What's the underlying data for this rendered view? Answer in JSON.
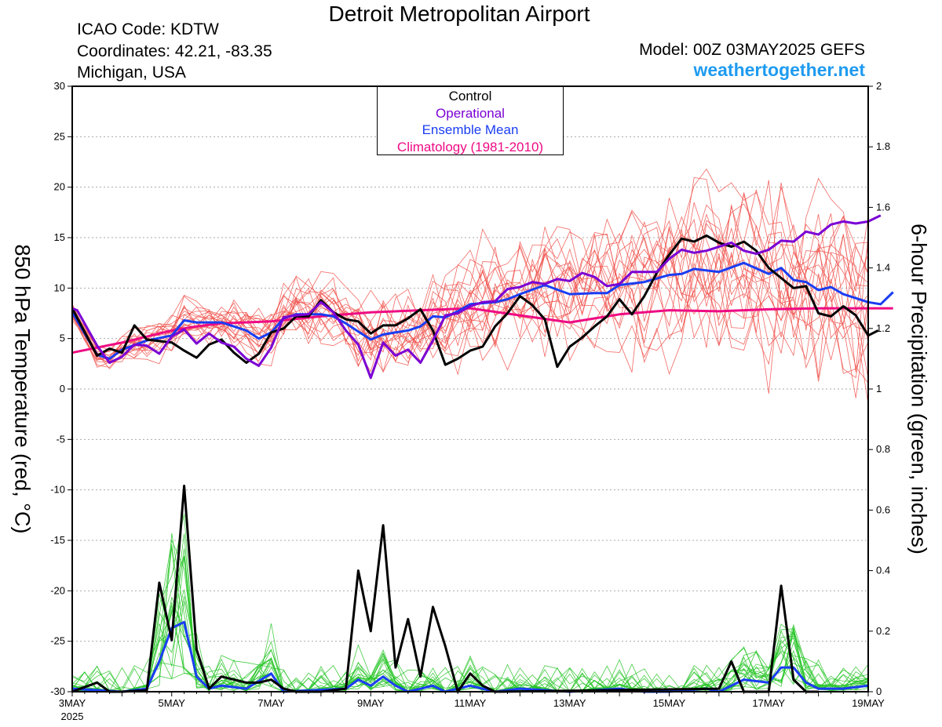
{
  "header": {
    "title": "Detroit Metropolitan Airport",
    "icao": "ICAO Code: KDTW",
    "coords": "Coordinates: 42.21, -83.35",
    "region": "Michigan, USA",
    "model": "Model: 00Z 03MAY2025 GEFS",
    "site": "weathertogether.net"
  },
  "legend": {
    "control": "Control",
    "operational": "Operational",
    "mean": "Ensemble Mean",
    "climo": "Climatology (1981-2010)"
  },
  "colors": {
    "control": "#000000",
    "operational": "#7a00d4",
    "mean": "#1a3df2",
    "climo": "#ee0b83",
    "members_temp": "#f0504a",
    "members_precip": "#26c426",
    "site": "#1e9bf0"
  },
  "chart_data": {
    "type": "line",
    "ylabel_left": "850 hPa Temperature (red, °C)",
    "ylabel_right": "6-hour Precipitation (green, inches)",
    "ylim_left": [
      -30,
      30
    ],
    "ylim_right": [
      0,
      2
    ],
    "yticks_left": [
      30,
      25,
      20,
      15,
      10,
      5,
      0,
      -5,
      -10,
      -15,
      -20,
      -25,
      -30
    ],
    "yticks_right": [
      2,
      1.8,
      1.6,
      1.4,
      1.2,
      1,
      0.8,
      0.6,
      0.4,
      0.2,
      0
    ],
    "xlim_days": [
      3,
      19
    ],
    "xticks": [
      {
        "day": 3,
        "label": "3MAY",
        "sub": "2025"
      },
      {
        "day": 5,
        "label": "5MAY"
      },
      {
        "day": 7,
        "label": "7MAY"
      },
      {
        "day": 9,
        "label": "9MAY"
      },
      {
        "day": 11,
        "label": "11MAY"
      },
      {
        "day": 13,
        "label": "13MAY"
      },
      {
        "day": 15,
        "label": "15MAY"
      },
      {
        "day": 17,
        "label": "17MAY"
      },
      {
        "day": 19,
        "label": "19MAY"
      }
    ],
    "temperature": {
      "control": [
        [
          3,
          8
        ],
        [
          3.5,
          3.3
        ],
        [
          3.75,
          4
        ],
        [
          4,
          3.6
        ],
        [
          4.25,
          6.3
        ],
        [
          4.5,
          4.9
        ],
        [
          5,
          4.6
        ],
        [
          5.25,
          3.8
        ],
        [
          5.5,
          3.1
        ],
        [
          5.75,
          4.4
        ],
        [
          6,
          4.9
        ],
        [
          6.25,
          3.6
        ],
        [
          6.5,
          2.6
        ],
        [
          6.75,
          3.5
        ],
        [
          7,
          5.6
        ],
        [
          7.25,
          6
        ],
        [
          7.5,
          7.2
        ],
        [
          7.75,
          7.2
        ],
        [
          8,
          8.8
        ],
        [
          8.25,
          7.6
        ],
        [
          8.5,
          6.9
        ],
        [
          8.75,
          6.7
        ],
        [
          9,
          5.5
        ],
        [
          9.25,
          6.3
        ],
        [
          9.5,
          6.3
        ],
        [
          9.75,
          7
        ],
        [
          10,
          7.9
        ],
        [
          10.25,
          5.8
        ],
        [
          10.5,
          2.4
        ],
        [
          10.75,
          3
        ],
        [
          11,
          3.8
        ],
        [
          11.25,
          4.2
        ],
        [
          11.5,
          6.2
        ],
        [
          11.75,
          7.5
        ],
        [
          12,
          9.2
        ],
        [
          12.25,
          8.3
        ],
        [
          12.5,
          6.9
        ],
        [
          12.75,
          2.2
        ],
        [
          13,
          4.2
        ],
        [
          13.25,
          5.1
        ],
        [
          13.5,
          6.2
        ],
        [
          13.75,
          7.2
        ],
        [
          14,
          8.9
        ],
        [
          14.25,
          7.4
        ],
        [
          14.5,
          9.2
        ],
        [
          14.75,
          11.5
        ],
        [
          15,
          13.3
        ],
        [
          15.25,
          14.9
        ],
        [
          15.5,
          14.6
        ],
        [
          15.75,
          15.2
        ],
        [
          16,
          14.5
        ],
        [
          16.25,
          14.1
        ],
        [
          16.5,
          14.6
        ],
        [
          16.75,
          13.7
        ],
        [
          17,
          12
        ],
        [
          17.25,
          11
        ],
        [
          17.5,
          10
        ],
        [
          17.75,
          10.2
        ],
        [
          18,
          7.5
        ],
        [
          18.25,
          7.2
        ],
        [
          18.5,
          8.2
        ],
        [
          18.75,
          7.3
        ],
        [
          19,
          5.3
        ],
        [
          19.2,
          5.8
        ]
      ],
      "operational": [
        [
          3,
          8
        ],
        [
          3.1,
          7.8
        ],
        [
          3.5,
          4.3
        ],
        [
          3.75,
          2.6
        ],
        [
          4,
          3.2
        ],
        [
          4.25,
          4.4
        ],
        [
          4.5,
          4.3
        ],
        [
          4.75,
          3.5
        ],
        [
          5,
          5.2
        ],
        [
          5.25,
          5.9
        ],
        [
          5.5,
          4.5
        ],
        [
          5.75,
          5.5
        ],
        [
          6,
          4.6
        ],
        [
          6.25,
          4.2
        ],
        [
          6.5,
          3
        ],
        [
          6.75,
          2.3
        ],
        [
          7,
          4.1
        ],
        [
          7.25,
          7.1
        ],
        [
          7.5,
          7.3
        ],
        [
          7.75,
          7.4
        ],
        [
          8,
          8.6
        ],
        [
          8.25,
          7.6
        ],
        [
          8.5,
          5.8
        ],
        [
          8.75,
          4.4
        ],
        [
          9,
          1.1
        ],
        [
          9.25,
          4.6
        ],
        [
          9.5,
          3.3
        ],
        [
          9.75,
          3.9
        ],
        [
          10,
          2.6
        ],
        [
          10.25,
          4.8
        ],
        [
          10.5,
          7.3
        ],
        [
          10.75,
          7.5
        ],
        [
          11,
          8.2
        ],
        [
          11.25,
          8.6
        ],
        [
          11.5,
          8.7
        ],
        [
          11.75,
          9.9
        ],
        [
          12,
          10.1
        ],
        [
          12.25,
          10.6
        ],
        [
          12.5,
          10.4
        ],
        [
          12.75,
          10.9
        ],
        [
          13,
          10.7
        ],
        [
          13.25,
          11.5
        ],
        [
          13.5,
          11.1
        ],
        [
          13.75,
          10.2
        ],
        [
          14,
          10.4
        ],
        [
          14.25,
          11.6
        ],
        [
          14.5,
          11.6
        ],
        [
          14.75,
          11.6
        ],
        [
          15,
          12.9
        ],
        [
          15.25,
          13.8
        ],
        [
          15.5,
          13.5
        ],
        [
          15.75,
          13.7
        ],
        [
          16,
          14.1
        ],
        [
          16.25,
          14.5
        ],
        [
          16.5,
          13.7
        ],
        [
          16.75,
          13.4
        ],
        [
          17,
          13.8
        ],
        [
          17.25,
          14.7
        ],
        [
          17.5,
          14.6
        ],
        [
          17.75,
          15.6
        ],
        [
          18,
          15.3
        ],
        [
          18.25,
          16.3
        ],
        [
          18.5,
          16.6
        ],
        [
          18.75,
          16.4
        ],
        [
          19,
          16.6
        ],
        [
          19.25,
          17.2
        ]
      ],
      "mean": [
        [
          3,
          7.6
        ],
        [
          3.5,
          3.4
        ],
        [
          3.75,
          3
        ],
        [
          4,
          3.9
        ],
        [
          4.5,
          4.8
        ],
        [
          5,
          5.3
        ],
        [
          5.25,
          6.8
        ],
        [
          5.5,
          6.6
        ],
        [
          6,
          6.6
        ],
        [
          6.5,
          5.8
        ],
        [
          6.75,
          5
        ],
        [
          7,
          5.6
        ],
        [
          7.25,
          7
        ],
        [
          7.5,
          7.4
        ],
        [
          8,
          7.4
        ],
        [
          8.25,
          7.2
        ],
        [
          8.5,
          6.5
        ],
        [
          8.75,
          5.7
        ],
        [
          9,
          4.9
        ],
        [
          9.25,
          5.4
        ],
        [
          9.5,
          5.6
        ],
        [
          9.75,
          5.8
        ],
        [
          10,
          6.2
        ],
        [
          10.25,
          7.2
        ],
        [
          10.5,
          7.1
        ],
        [
          10.75,
          7.7
        ],
        [
          11,
          8.4
        ],
        [
          11.5,
          8.6
        ],
        [
          11.75,
          8.9
        ],
        [
          12,
          9.4
        ],
        [
          12.5,
          10.3
        ],
        [
          13,
          9.4
        ],
        [
          13.5,
          9.5
        ],
        [
          13.75,
          9.5
        ],
        [
          14,
          10.3
        ],
        [
          14.5,
          10.6
        ],
        [
          15,
          11.3
        ],
        [
          15.25,
          11.4
        ],
        [
          15.5,
          11.9
        ],
        [
          16,
          11.6
        ],
        [
          16.5,
          12.5
        ],
        [
          17,
          11.4
        ],
        [
          17.25,
          12
        ],
        [
          17.5,
          10.8
        ],
        [
          17.75,
          10.6
        ],
        [
          18,
          9.8
        ],
        [
          18.25,
          10.1
        ],
        [
          18.5,
          9.4
        ],
        [
          18.75,
          9
        ],
        [
          19,
          8.6
        ],
        [
          19.25,
          8.4
        ],
        [
          19.5,
          9.6
        ]
      ],
      "climo": [
        [
          3,
          3.6
        ],
        [
          4,
          4.6
        ],
        [
          5,
          5.8
        ],
        [
          5.5,
          6.2
        ],
        [
          6,
          6.5
        ],
        [
          7,
          6.7
        ],
        [
          8,
          7.2
        ],
        [
          9,
          7.6
        ],
        [
          10,
          7.8
        ],
        [
          11,
          8
        ],
        [
          12,
          7.3
        ],
        [
          13,
          6.6
        ],
        [
          14,
          7.4
        ],
        [
          15,
          7.8
        ],
        [
          16,
          7.7
        ],
        [
          17,
          7.9
        ],
        [
          18,
          8
        ],
        [
          19,
          8
        ],
        [
          19.5,
          8
        ]
      ]
    },
    "precipitation": {
      "control": [
        [
          3,
          0
        ],
        [
          3.25,
          0.015
        ],
        [
          3.5,
          0.03
        ],
        [
          3.75,
          0
        ],
        [
          4,
          0
        ],
        [
          4.5,
          0.005
        ],
        [
          4.75,
          0.36
        ],
        [
          5,
          0.17
        ],
        [
          5.25,
          0.68
        ],
        [
          5.5,
          0.14
        ],
        [
          5.75,
          0.01
        ],
        [
          6,
          0.05
        ],
        [
          6.25,
          0.04
        ],
        [
          6.5,
          0.03
        ],
        [
          6.75,
          0.03
        ],
        [
          7,
          0.04
        ],
        [
          7.25,
          0.01
        ],
        [
          7.5,
          0
        ],
        [
          8,
          0
        ],
        [
          8.5,
          0.01
        ],
        [
          8.75,
          0.4
        ],
        [
          9,
          0.2
        ],
        [
          9.25,
          0.55
        ],
        [
          9.5,
          0.08
        ],
        [
          9.75,
          0.24
        ],
        [
          10,
          0.05
        ],
        [
          10.25,
          0.28
        ],
        [
          10.5,
          0.15
        ],
        [
          10.75,
          0
        ],
        [
          11,
          0.06
        ],
        [
          11.25,
          0.02
        ],
        [
          11.5,
          0
        ],
        [
          16,
          0.01
        ],
        [
          16.25,
          0.1
        ],
        [
          16.5,
          0
        ],
        [
          17,
          0
        ],
        [
          17.25,
          0.35
        ],
        [
          17.5,
          0.04
        ],
        [
          17.75,
          0
        ],
        [
          18,
          0
        ]
      ],
      "mean": [
        [
          3,
          0.01
        ],
        [
          4,
          0
        ],
        [
          4.5,
          0.01
        ],
        [
          4.75,
          0.1
        ],
        [
          5,
          0.21
        ],
        [
          5.25,
          0.23
        ],
        [
          5.5,
          0.05
        ],
        [
          5.75,
          0.01
        ],
        [
          6,
          0.02
        ],
        [
          6.5,
          0.01
        ],
        [
          7,
          0.06
        ],
        [
          7.25,
          0
        ],
        [
          8.5,
          0.01
        ],
        [
          8.75,
          0.04
        ],
        [
          9,
          0.02
        ],
        [
          9.25,
          0.05
        ],
        [
          9.5,
          0.02
        ],
        [
          9.75,
          0
        ],
        [
          10.25,
          0.02
        ],
        [
          10.5,
          0
        ],
        [
          11,
          0.02
        ],
        [
          11.5,
          0
        ],
        [
          12,
          0.01
        ],
        [
          13,
          0
        ],
        [
          14,
          0.01
        ],
        [
          14.5,
          0
        ],
        [
          15,
          0
        ],
        [
          15.75,
          0.01
        ],
        [
          16,
          0
        ],
        [
          16.5,
          0.04
        ],
        [
          17,
          0.03
        ],
        [
          17.25,
          0.08
        ],
        [
          17.5,
          0.08
        ],
        [
          17.75,
          0.03
        ],
        [
          18,
          0.01
        ],
        [
          18.5,
          0.01
        ],
        [
          19,
          0.02
        ]
      ]
    }
  }
}
